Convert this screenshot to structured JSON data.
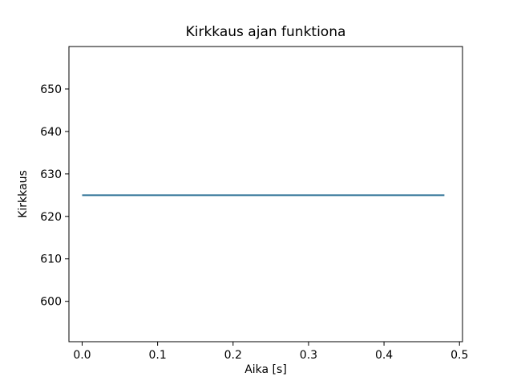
{
  "chart_data": {
    "type": "line",
    "title": "Kirkkaus ajan funktiona",
    "xlabel": "Aika [s]",
    "ylabel": "Kirkkaus",
    "xlim": [
      -0.0175,
      0.504
    ],
    "ylim": [
      590.5,
      660.0
    ],
    "xticks": {
      "values": [
        0.0,
        0.1,
        0.2,
        0.3,
        0.4,
        0.5
      ],
      "labels": [
        "0.0",
        "0.1",
        "0.2",
        "0.3",
        "0.4",
        "0.5"
      ]
    },
    "yticks": {
      "values": [
        600,
        610,
        620,
        630,
        640,
        650
      ],
      "labels": [
        "600",
        "610",
        "620",
        "630",
        "640",
        "650"
      ]
    },
    "grid": false,
    "legend": "none",
    "background_color": "#ffffff",
    "axis_color": "#000000",
    "series": [
      {
        "name": "kirkkaus",
        "color": "#2e7296",
        "line_width": 2,
        "x": [
          0.0,
          0.48
        ],
        "y": [
          625,
          625
        ]
      }
    ]
  }
}
